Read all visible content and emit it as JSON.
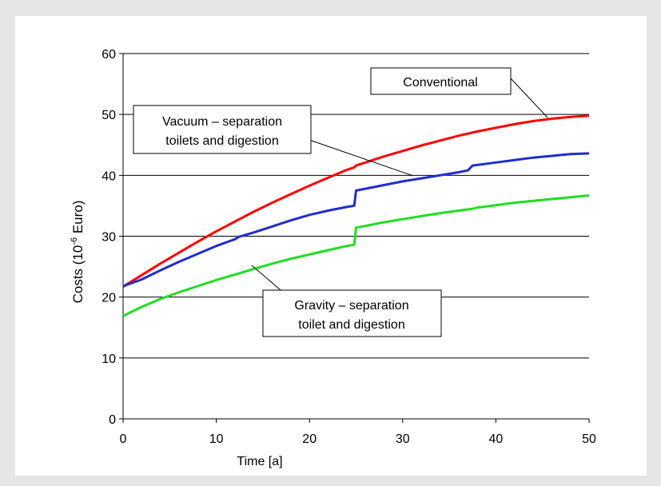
{
  "chart_data": {
    "type": "line",
    "xlabel": "Time [a]",
    "ylabel": "Costs (10",
    "ylabel_sup": "-6",
    "ylabel_suffix": " Euro)",
    "xlim": [
      0,
      50
    ],
    "ylim": [
      0,
      60
    ],
    "xticks": [
      0,
      10,
      20,
      30,
      40,
      50
    ],
    "yticks": [
      0,
      10,
      20,
      30,
      40,
      50,
      60
    ],
    "grid": "horizontal",
    "series": [
      {
        "name": "Conventional",
        "color": "#ff0000",
        "points": [
          [
            0,
            21.7
          ],
          [
            2,
            23.6
          ],
          [
            4,
            25.5
          ],
          [
            6,
            27.3
          ],
          [
            8,
            29.1
          ],
          [
            10,
            30.8
          ],
          [
            12,
            32.4
          ],
          [
            14,
            34.0
          ],
          [
            16,
            35.5
          ],
          [
            18,
            36.9
          ],
          [
            20,
            38.3
          ],
          [
            22,
            39.6
          ],
          [
            24,
            40.9
          ],
          [
            24.8,
            41.3
          ],
          [
            25,
            41.6
          ],
          [
            26,
            42.1
          ],
          [
            28,
            43.1
          ],
          [
            30,
            44.0
          ],
          [
            32,
            44.9
          ],
          [
            34,
            45.7
          ],
          [
            36,
            46.5
          ],
          [
            38,
            47.2
          ],
          [
            40,
            47.8
          ],
          [
            42,
            48.4
          ],
          [
            44,
            48.9
          ],
          [
            46,
            49.3
          ],
          [
            48,
            49.6
          ],
          [
            50,
            49.8
          ]
        ]
      },
      {
        "name": "Vacuum – separation toilets and digestion",
        "color": "#1f2ecc",
        "points": [
          [
            0,
            21.8
          ],
          [
            2,
            22.9
          ],
          [
            4,
            24.4
          ],
          [
            6,
            25.8
          ],
          [
            8,
            27.1
          ],
          [
            10,
            28.4
          ],
          [
            12,
            29.5
          ],
          [
            12.4,
            29.9
          ],
          [
            14,
            30.6
          ],
          [
            16,
            31.6
          ],
          [
            18,
            32.6
          ],
          [
            20,
            33.5
          ],
          [
            22,
            34.2
          ],
          [
            24,
            34.8
          ],
          [
            24.8,
            35.0
          ],
          [
            25,
            37.5
          ],
          [
            26,
            37.8
          ],
          [
            28,
            38.4
          ],
          [
            30,
            39.0
          ],
          [
            32,
            39.5
          ],
          [
            34,
            40.0
          ],
          [
            36,
            40.5
          ],
          [
            37,
            40.8
          ],
          [
            37.5,
            41.6
          ],
          [
            40,
            42.1
          ],
          [
            42,
            42.5
          ],
          [
            44,
            42.9
          ],
          [
            46,
            43.2
          ],
          [
            48,
            43.5
          ],
          [
            50,
            43.6
          ]
        ]
      },
      {
        "name": "Gravity – separation toilet and digestion",
        "color": "#22dd22",
        "points": [
          [
            0,
            16.9
          ],
          [
            2,
            18.4
          ],
          [
            4,
            19.7
          ],
          [
            6,
            20.8
          ],
          [
            8,
            21.8
          ],
          [
            10,
            22.8
          ],
          [
            12,
            23.7
          ],
          [
            14,
            24.6
          ],
          [
            16,
            25.5
          ],
          [
            18,
            26.3
          ],
          [
            20,
            27.0
          ],
          [
            22,
            27.7
          ],
          [
            24,
            28.4
          ],
          [
            24.8,
            28.6
          ],
          [
            25,
            31.4
          ],
          [
            26,
            31.7
          ],
          [
            28,
            32.3
          ],
          [
            30,
            32.8
          ],
          [
            32,
            33.3
          ],
          [
            34,
            33.8
          ],
          [
            36,
            34.2
          ],
          [
            37.5,
            34.5
          ],
          [
            38,
            34.7
          ],
          [
            40,
            35.1
          ],
          [
            42,
            35.5
          ],
          [
            44,
            35.8
          ],
          [
            46,
            36.1
          ],
          [
            48,
            36.4
          ],
          [
            50,
            36.7
          ]
        ]
      }
    ],
    "annotations": {
      "conventional": "Conventional",
      "vacuum_line1": "Vacuum – separation",
      "vacuum_line2": "toilets and digestion",
      "gravity_line1": "Gravity – separation",
      "gravity_line2": "toilet and digestion"
    }
  }
}
